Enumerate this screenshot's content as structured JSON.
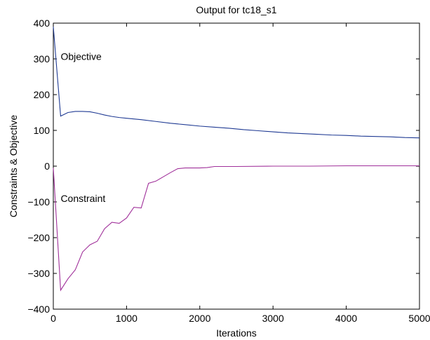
{
  "chart_data": {
    "type": "line",
    "title": "Output for tc18_s1",
    "xlabel": "Iterations",
    "ylabel": "Constraints & Objective",
    "xlim": [
      0,
      5000
    ],
    "ylim": [
      -400,
      400
    ],
    "x_ticks": [
      0,
      1000,
      2000,
      3000,
      4000,
      5000
    ],
    "x_tick_labels": [
      "0",
      "1000",
      "2000",
      "3000",
      "4000",
      "5000"
    ],
    "y_ticks": [
      -400,
      -300,
      -200,
      -100,
      0,
      100,
      200,
      300,
      400
    ],
    "y_tick_labels": [
      "−400",
      "−300",
      "−200",
      "−100",
      "0",
      "100",
      "200",
      "300",
      "400"
    ],
    "grid": false,
    "legend": "none",
    "annotations": [
      {
        "text": "Objective",
        "x": 100,
        "y": 297
      },
      {
        "text": "Constraint",
        "x": 100,
        "y": -100
      }
    ],
    "series": [
      {
        "name": "Objective",
        "color": "#1f3a93",
        "x": [
          0,
          100,
          200,
          300,
          400,
          500,
          600,
          700,
          800,
          900,
          1000,
          1200,
          1400,
          1600,
          1800,
          2000,
          2200,
          2400,
          2600,
          2800,
          3000,
          3200,
          3400,
          3600,
          3800,
          4000,
          4200,
          4400,
          4600,
          4800,
          5000
        ],
        "y": [
          390,
          140,
          150,
          153,
          153,
          152,
          148,
          143,
          139,
          136,
          134,
          130,
          125,
          120,
          116,
          112,
          109,
          106,
          102,
          99,
          96,
          93,
          91,
          89,
          87,
          86,
          84,
          83,
          82,
          80,
          79
        ]
      },
      {
        "name": "Constraint",
        "color": "#a0309a",
        "x": [
          0,
          100,
          200,
          300,
          400,
          500,
          600,
          700,
          800,
          900,
          1000,
          1100,
          1200,
          1300,
          1400,
          1500,
          1600,
          1700,
          1800,
          1900,
          2000,
          2100,
          2200,
          2500,
          3000,
          3500,
          4000,
          4500,
          5000
        ],
        "y": [
          -5,
          -347,
          -315,
          -290,
          -240,
          -220,
          -210,
          -175,
          -157,
          -160,
          -145,
          -115,
          -117,
          -48,
          -42,
          -30,
          -18,
          -7,
          -5,
          -5,
          -5,
          -4,
          -1,
          -1,
          0,
          0,
          1,
          1,
          1
        ]
      }
    ]
  }
}
